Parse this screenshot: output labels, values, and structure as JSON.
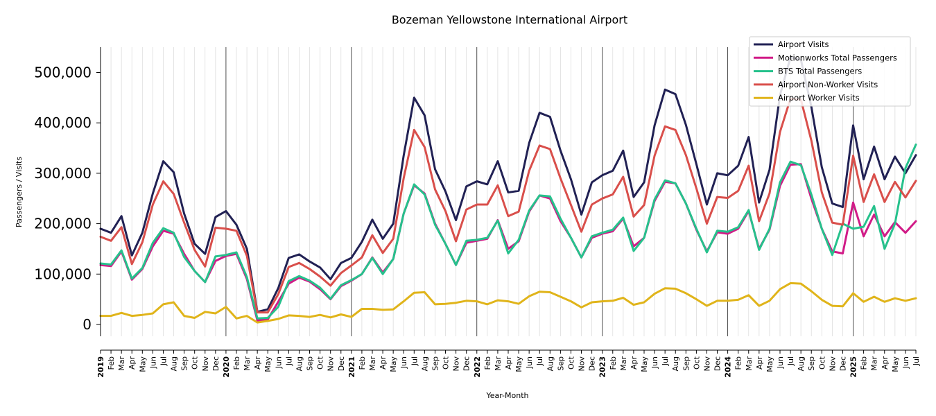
{
  "chart_data": {
    "type": "line",
    "title": "Bozeman Yellowstone International Airport",
    "xlabel": "Year-Month",
    "ylabel": "Passengers / Visits",
    "ylim": [
      -25000,
      550000
    ],
    "yticks": [
      0,
      100000,
      200000,
      300000,
      400000,
      500000
    ],
    "ytick_labels": [
      "0",
      "100,000",
      "200,000",
      "300,000",
      "400,000",
      "500,000"
    ],
    "grid": "vertical",
    "legend_position": "top-right",
    "x": [
      "2019",
      "Feb",
      "Mar",
      "Apr",
      "May",
      "Jun",
      "Jul",
      "Aug",
      "Sep",
      "Oct",
      "Nov",
      "Dec",
      "2020",
      "Feb",
      "Mar",
      "Apr",
      "May",
      "Jun",
      "Jul",
      "Aug",
      "Sep",
      "Oct",
      "Nov",
      "Dec",
      "2021",
      "Feb",
      "Mar",
      "Apr",
      "May",
      "Jun",
      "Jul",
      "Aug",
      "Sep",
      "Oct",
      "Nov",
      "Dec",
      "2022",
      "Feb",
      "Mar",
      "Apr",
      "May",
      "Jun",
      "Jul",
      "Aug",
      "Sep",
      "Oct",
      "Nov",
      "Dec",
      "2023",
      "Feb",
      "Mar",
      "Apr",
      "May",
      "Jun",
      "Jul",
      "Aug",
      "Sep",
      "Oct",
      "Nov",
      "Dec",
      "2024",
      "Feb",
      "Mar",
      "Apr",
      "May",
      "Jun",
      "Jul",
      "Aug",
      "Sep",
      "Oct",
      "Nov",
      "Dec",
      "2025",
      "Feb",
      "Mar",
      "Apr",
      "May",
      "Jun",
      "Jul"
    ],
    "series": [
      {
        "name": "Airport Visits",
        "color": "#212154",
        "values": [
          190000,
          182000,
          215000,
          137000,
          182000,
          260000,
          324000,
          302000,
          220000,
          160000,
          140000,
          213000,
          225000,
          198000,
          150000,
          25000,
          30000,
          72000,
          132000,
          139000,
          125000,
          113000,
          90000,
          122000,
          132000,
          164000,
          208000,
          170000,
          200000,
          335000,
          450000,
          415000,
          308000,
          264000,
          207000,
          274000,
          284000,
          278000,
          324000,
          262000,
          265000,
          360000,
          420000,
          412000,
          345000,
          288000,
          218000,
          282000,
          296000,
          305000,
          345000,
          253000,
          282000,
          395000,
          466000,
          457000,
          396000,
          318000,
          238000,
          300000,
          296000,
          315000,
          372000,
          242000,
          307000,
          455000,
          530000,
          525000,
          432000,
          312000,
          240000,
          233000,
          395000,
          288000,
          353000,
          288000,
          333000,
          300000,
          336000
        ]
      },
      {
        "name": "Motionworks Total Passengers",
        "color": "#d11b87",
        "values": [
          118000,
          116000,
          145000,
          89000,
          110000,
          155000,
          186000,
          180000,
          140000,
          106000,
          84000,
          126000,
          136000,
          140000,
          90000,
          8000,
          10000,
          45000,
          81000,
          93000,
          85000,
          70000,
          50000,
          76000,
          87000,
          100000,
          133000,
          103000,
          130000,
          220000,
          276000,
          260000,
          200000,
          160000,
          118000,
          162000,
          166000,
          170000,
          207000,
          150000,
          165000,
          224000,
          256000,
          250000,
          205000,
          172000,
          133000,
          172000,
          180000,
          185000,
          210000,
          155000,
          172000,
          245000,
          283000,
          280000,
          240000,
          188000,
          145000,
          183000,
          180000,
          190000,
          225000,
          150000,
          188000,
          275000,
          317000,
          318000,
          250000,
          190000,
          145000,
          141000,
          242000,
          175000,
          218000,
          175000,
          203000,
          182000,
          205000
        ]
      },
      {
        "name": "BTS Total Passengers",
        "color": "#26c18c",
        "values": [
          121000,
          119000,
          147000,
          91000,
          112000,
          162000,
          191000,
          182000,
          134000,
          106000,
          84000,
          135000,
          138000,
          143000,
          94000,
          12000,
          13000,
          35000,
          86000,
          96000,
          87000,
          73000,
          51000,
          78000,
          88000,
          100000,
          132000,
          100000,
          130000,
          220000,
          278000,
          258000,
          198000,
          160000,
          118000,
          166000,
          168000,
          172000,
          206000,
          141000,
          168000,
          226000,
          256000,
          254000,
          210000,
          172000,
          133000,
          175000,
          182000,
          188000,
          212000,
          146000,
          172000,
          248000,
          286000,
          280000,
          240000,
          190000,
          143000,
          186000,
          184000,
          193000,
          227000,
          148000,
          190000,
          282000,
          323000,
          316000,
          258000,
          190000,
          138000,
          200000,
          190000,
          194000,
          235000,
          150000,
          200000,
          310000,
          357000
        ]
      },
      {
        "name": "Airport Non-Worker Visits",
        "color": "#d94f4b",
        "values": [
          174000,
          166000,
          193000,
          120000,
          163000,
          238000,
          284000,
          259000,
          202000,
          148000,
          115000,
          192000,
          190000,
          186000,
          136000,
          24000,
          24000,
          60000,
          114000,
          122000,
          110000,
          95000,
          77000,
          102000,
          117000,
          133000,
          177000,
          142000,
          170000,
          290000,
          386000,
          352000,
          268000,
          225000,
          165000,
          228000,
          238000,
          238000,
          276000,
          215000,
          224000,
          305000,
          355000,
          348000,
          290000,
          237000,
          184000,
          238000,
          250000,
          258000,
          293000,
          214000,
          237000,
          335000,
          393000,
          386000,
          336000,
          270000,
          200000,
          253000,
          251000,
          265000,
          315000,
          205000,
          260000,
          382000,
          448000,
          446000,
          365000,
          262000,
          202000,
          198000,
          335000,
          243000,
          298000,
          243000,
          283000,
          252000,
          285000
        ]
      },
      {
        "name": "Airport Worker Visits",
        "color": "#e0b41a",
        "values": [
          17000,
          17000,
          23000,
          17000,
          19000,
          22000,
          40000,
          44000,
          17000,
          13000,
          25000,
          22000,
          35000,
          12000,
          17000,
          4000,
          7000,
          11000,
          18000,
          17000,
          15000,
          19000,
          14000,
          20000,
          15000,
          31000,
          31000,
          29000,
          30000,
          46000,
          63000,
          64000,
          40000,
          41000,
          43000,
          47000,
          46000,
          40000,
          48000,
          46000,
          41000,
          56000,
          65000,
          64000,
          55000,
          46000,
          34000,
          44000,
          46000,
          47000,
          53000,
          39000,
          44000,
          61000,
          72000,
          71000,
          62000,
          50000,
          37000,
          47000,
          47000,
          49000,
          58000,
          37000,
          47000,
          70000,
          82000,
          81000,
          66000,
          49000,
          37000,
          36000,
          62000,
          45000,
          55000,
          45000,
          52000,
          47000,
          52000
        ]
      }
    ]
  }
}
